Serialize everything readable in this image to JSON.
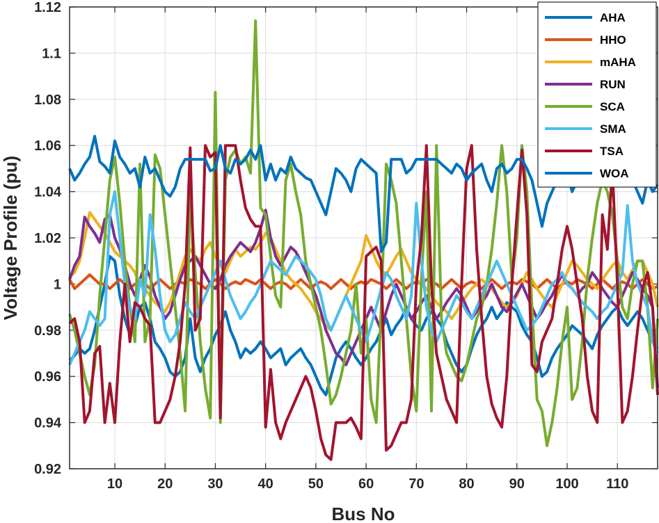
{
  "chart_data": {
    "type": "line",
    "title": "",
    "xlabel": "Bus No",
    "ylabel": "Voltage Profile (pu)",
    "xlim": [
      1,
      118
    ],
    "ylim": [
      0.92,
      1.12
    ],
    "xticks": [
      "10",
      "20",
      "30",
      "40",
      "50",
      "60",
      "70",
      "80",
      "90",
      "100",
      "110"
    ],
    "xtick_values": [
      10,
      20,
      30,
      40,
      50,
      60,
      70,
      80,
      90,
      100,
      110
    ],
    "yticks": [
      "0.92",
      "0.94",
      "0.96",
      "0.98",
      "1",
      "1.02",
      "1.04",
      "1.06",
      "1.08",
      "1.1",
      "1.12"
    ],
    "ytick_values": [
      0.92,
      0.94,
      0.96,
      0.98,
      1.0,
      1.02,
      1.04,
      1.06,
      1.08,
      1.1,
      1.12
    ],
    "grid": true,
    "legend_position": "top-right",
    "series": [
      {
        "name": "AHA",
        "color": "#0072BD",
        "values": [
          0.967,
          0.969,
          0.972,
          0.97,
          0.972,
          0.98,
          0.99,
          1.0,
          1.012,
          1.01,
          0.995,
          0.985,
          0.978,
          0.982,
          0.99,
          0.992,
          0.985,
          0.975,
          0.972,
          0.968,
          0.962,
          0.96,
          0.962,
          0.968,
          0.985,
          0.968,
          0.962,
          0.968,
          0.972,
          0.978,
          0.982,
          0.988,
          0.98,
          0.975,
          0.968,
          0.972,
          0.97,
          0.972,
          0.975,
          0.972,
          0.968,
          0.97,
          0.972,
          0.965,
          0.968,
          0.97,
          0.972,
          0.968,
          0.965,
          0.96,
          0.955,
          0.952,
          0.96,
          0.968,
          0.972,
          0.975,
          0.972,
          0.968,
          0.965,
          0.968,
          0.972,
          0.975,
          0.98,
          0.985,
          0.978,
          0.982,
          0.985,
          0.99,
          0.985,
          0.982,
          0.98,
          0.985,
          0.988,
          0.985,
          0.982,
          0.975,
          0.97,
          0.965,
          0.962,
          0.965,
          0.972,
          0.978,
          0.982,
          0.985,
          0.99,
          0.985,
          0.988,
          0.992,
          0.99,
          0.988,
          0.982,
          0.978,
          0.975,
          0.968,
          0.96,
          0.962,
          0.968,
          0.972,
          0.975,
          0.978,
          0.982,
          0.98,
          0.978,
          0.975,
          0.972,
          0.978,
          0.982,
          0.985,
          0.988,
          0.99,
          0.985,
          0.982,
          0.985,
          0.988,
          0.985,
          0.98,
          0.975,
          0.972
        ]
      },
      {
        "name": "HHO",
        "color": "#D95319",
        "values": [
          1.002,
          0.998,
          1.0,
          1.002,
          1.004,
          1.002,
          1.0,
          1.0,
          0.998,
          1.0,
          1.002,
          1.0,
          0.998,
          1.0,
          1.001,
          1.0,
          0.998,
          1.0,
          1.002,
          1.0,
          0.998,
          1.0,
          1.001,
          1.0,
          1.002,
          1.001,
          1.0,
          0.998,
          1.0,
          1.002,
          1.0,
          0.998,
          1.0,
          1.001,
          1.0,
          1.002,
          1.001,
          1.0,
          1.002,
          1.0,
          0.998,
          1.0,
          1.001,
          1.0,
          0.998,
          1.0,
          1.002,
          1.0,
          0.998,
          1.0,
          1.001,
          1.0,
          0.998,
          1.0,
          1.002,
          1.0,
          0.998,
          1.0,
          1.001,
          1.0,
          1.002,
          1.001,
          1.0,
          0.998,
          1.0,
          1.002,
          1.0,
          0.998,
          1.0,
          1.001,
          1.0,
          1.002,
          1.001,
          1.0,
          0.998,
          1.0,
          1.002,
          1.0,
          0.998,
          1.0,
          1.001,
          1.0,
          0.998,
          1.0,
          1.002,
          1.0,
          0.998,
          1.0,
          1.001,
          1.0,
          1.002,
          1.001,
          1.0,
          0.998,
          1.0,
          1.002,
          1.0,
          0.998,
          1.0,
          1.001,
          1.0,
          1.002,
          1.001,
          1.0,
          0.998,
          1.0,
          1.002,
          1.0,
          0.998,
          1.0,
          1.001,
          1.0,
          0.998,
          1.0,
          1.002,
          1.0,
          0.998,
          0.999
        ]
      },
      {
        "name": "mAHA",
        "color": "#EDB120",
        "values": [
          1.003,
          1.005,
          1.01,
          1.02,
          1.031,
          1.028,
          1.025,
          1.022,
          1.018,
          1.014,
          1.012,
          1.01,
          1.008,
          1.005,
          1.0,
          0.998,
          0.995,
          0.992,
          0.99,
          0.988,
          0.992,
          0.998,
          1.005,
          1.012,
          1.015,
          1.012,
          1.01,
          1.015,
          1.018,
          1.012,
          1.008,
          1.005,
          1.01,
          1.015,
          1.012,
          1.014,
          1.016,
          1.015,
          1.018,
          1.022,
          1.02,
          1.015,
          1.01,
          1.005,
          1.002,
          1.0,
          0.998,
          0.995,
          0.992,
          0.988,
          0.985,
          0.982,
          0.98,
          0.985,
          0.99,
          0.995,
          1.0,
          1.005,
          1.01,
          1.021,
          1.016,
          1.01,
          1.006,
          1.004,
          1.008,
          1.012,
          1.015,
          1.01,
          1.005,
          1.002,
          1.0,
          0.998,
          0.995,
          0.992,
          0.99,
          0.988,
          0.985,
          0.988,
          0.992,
          0.995,
          0.998,
          1.0,
          1.002,
          1.0,
          0.998,
          0.995,
          0.992,
          0.99,
          0.992,
          0.995,
          1.0,
          1.005,
          1.002,
          0.998,
          0.995,
          0.992,
          0.99,
          0.995,
          1.0,
          1.005,
          1.01,
          1.008,
          1.005,
          1.002,
          1.0,
          0.998,
          1.002,
          1.005,
          1.008,
          1.01,
          1.005,
          1.002,
          1.006,
          1.01,
          1.01,
          1.005,
          1.0,
          0.99
        ]
      },
      {
        "name": "RUN",
        "color": "#7E2F8E",
        "values": [
          1.002,
          1.008,
          1.012,
          1.029,
          1.025,
          1.022,
          1.018,
          1.028,
          1.03,
          1.02,
          1.015,
          1.008,
          1.0,
          0.995,
          1.002,
          1.008,
          1.003,
          0.995,
          0.99,
          0.985,
          0.988,
          0.995,
          1.002,
          1.008,
          1.01,
          1.012,
          1.008,
          1.004,
          1.0,
          0.998,
          1.002,
          1.008,
          1.012,
          1.015,
          1.018,
          1.016,
          1.014,
          1.018,
          1.024,
          1.032,
          1.02,
          1.012,
          1.008,
          1.012,
          1.016,
          1.014,
          1.01,
          1.005,
          1.0,
          0.995,
          0.988,
          0.98,
          0.975,
          0.97,
          0.968,
          0.965,
          0.97,
          0.975,
          0.98,
          0.985,
          0.99,
          0.985,
          0.98,
          0.988,
          0.995,
          1.0,
          0.995,
          0.99,
          0.985,
          0.988,
          0.992,
          0.995,
          0.99,
          0.985,
          0.988,
          0.992,
          0.995,
          0.998,
          0.995,
          0.99,
          0.985,
          0.988,
          0.992,
          0.995,
          1.0,
          0.995,
          0.99,
          0.988,
          0.992,
          0.996,
          1.0,
          0.995,
          0.99,
          0.985,
          0.988,
          0.992,
          0.995,
          1.0,
          1.004,
          1.0,
          0.998,
          0.995,
          0.998,
          1.0,
          1.005,
          1.002,
          0.998,
          0.995,
          0.992,
          0.99,
          0.995,
          1.0,
          1.005,
          1.002,
          0.998,
          0.995,
          0.99,
          0.955
        ]
      },
      {
        "name": "SCA",
        "color": "#77AC30",
        "values": [
          0.987,
          0.98,
          0.97,
          0.96,
          0.952,
          0.965,
          0.995,
          1.02,
          1.045,
          1.055,
          1.035,
          1.01,
          0.99,
          0.975,
          1.052,
          0.975,
          0.985,
          1.056,
          1.05,
          1.03,
          1.01,
          0.99,
          0.97,
          0.945,
          1.04,
          1.005,
          0.975,
          0.955,
          0.942,
          1.083,
          0.94,
          1.045,
          1.055,
          1.058,
          1.052,
          1.055,
          1.048,
          1.114,
          1.033,
          1.03,
          1.012,
          0.995,
          0.99,
          1.045,
          1.052,
          1.04,
          1.03,
          1.01,
          1.0,
          0.99,
          0.98,
          0.965,
          0.948,
          0.952,
          0.96,
          0.97,
          0.98,
          1.0,
          0.97,
          0.985,
          0.95,
          0.94,
          0.99,
          1.052,
          1.045,
          1.035,
          1.01,
          0.985,
          0.96,
          0.945,
          1.002,
          1.04,
          0.945,
          1.06,
          0.985,
          0.97,
          0.965,
          0.96,
          0.958,
          0.965,
          0.975,
          0.985,
          0.99,
          1.0,
          1.015,
          1.035,
          1.06,
          1.04,
          1.002,
          1.02,
          1.06,
          1.04,
          0.99,
          0.95,
          0.945,
          0.93,
          0.94,
          0.955,
          0.975,
          0.99,
          0.95,
          0.955,
          0.975,
          1.002,
          1.02,
          1.035,
          1.045,
          1.04,
          1.03,
          1.01,
          0.99,
          0.985,
          1.0,
          1.01,
          1.01,
          0.99,
          0.955,
          0.985
        ]
      },
      {
        "name": "SMA",
        "color": "#4DBEEE",
        "values": [
          0.965,
          0.97,
          0.975,
          0.98,
          0.988,
          0.985,
          0.982,
          0.985,
          1.03,
          1.04,
          1.02,
          1.0,
          0.99,
          0.985,
          1.002,
          0.995,
          1.03,
          1.015,
          0.995,
          0.98,
          0.975,
          0.978,
          0.985,
          0.992,
          0.988,
          0.985,
          0.99,
          0.995,
          1.0,
          1.005,
          1.01,
          1.002,
          0.995,
          0.99,
          0.985,
          0.988,
          0.992,
          0.995,
          1.0,
          1.005,
          1.01,
          1.008,
          1.006,
          1.004,
          1.008,
          1.012,
          1.01,
          1.008,
          1.005,
          1.002,
          0.995,
          0.985,
          0.98,
          0.985,
          0.99,
          0.995,
          0.99,
          0.985,
          0.98,
          0.975,
          0.982,
          0.99,
          0.998,
          1.005,
          1.002,
          0.995,
          0.99,
          0.985,
          0.995,
          1.035,
          1.01,
          0.99,
          0.98,
          0.975,
          0.98,
          0.985,
          0.99,
          0.995,
          0.992,
          0.988,
          0.985,
          0.99,
          0.995,
          1.0,
          1.005,
          1.01,
          1.005,
          1.0,
          0.995,
          0.99,
          0.985,
          0.98,
          0.982,
          0.985,
          0.99,
          0.995,
          1.0,
          1.002,
          1.005,
          1.0,
          0.998,
          0.995,
          0.992,
          0.99,
          0.988,
          0.985,
          0.988,
          0.99,
          0.995,
          1.0,
          1.005,
          1.034,
          1.01,
          1.0,
          0.995,
          0.99,
          0.975,
          0.97
        ]
      },
      {
        "name": "TSA",
        "color": "#A2142F",
        "values": [
          0.983,
          0.985,
          0.975,
          0.94,
          0.945,
          0.97,
          0.973,
          0.94,
          0.957,
          0.94,
          0.975,
          1.0,
          0.975,
          0.992,
          0.99,
          0.985,
          0.982,
          0.94,
          0.94,
          0.945,
          0.95,
          0.96,
          0.975,
          1.0,
          1.059,
          0.98,
          0.985,
          1.06,
          1.055,
          1.057,
          0.942,
          1.06,
          1.06,
          1.06,
          1.045,
          1.033,
          1.028,
          1.025,
          1.025,
          0.938,
          0.963,
          0.94,
          0.933,
          0.94,
          0.945,
          0.95,
          0.955,
          0.96,
          0.955,
          0.945,
          0.933,
          0.926,
          0.924,
          0.94,
          0.94,
          0.94,
          0.942,
          0.938,
          0.933,
          1.012,
          1.014,
          1.016,
          1.01,
          0.928,
          0.93,
          0.935,
          0.94,
          0.94,
          0.95,
          1.0,
          1.02,
          1.06,
          1.0,
          0.97,
          0.96,
          0.95,
          0.945,
          0.94,
          1.0,
          1.05,
          1.06,
          1.015,
          0.985,
          0.96,
          0.948,
          0.942,
          0.938,
          0.96,
          1.0,
          1.03,
          1.058,
          1.03,
          0.965,
          0.962,
          0.975,
          0.98,
          0.985,
          1.0,
          1.015,
          1.025,
          1.015,
          1.0,
          0.985,
          0.96,
          0.945,
          0.94,
          1.03,
          1.015,
          1.05,
          1.0,
          0.94,
          0.945,
          0.96,
          0.98,
          0.998,
          1.005,
          0.99,
          0.952
        ]
      },
      {
        "name": "WOA",
        "color": "#0072BD",
        "values": [
          1.05,
          1.045,
          1.048,
          1.052,
          1.055,
          1.064,
          1.053,
          1.051,
          1.048,
          1.062,
          1.055,
          1.052,
          1.048,
          1.05,
          1.042,
          1.055,
          1.048,
          1.05,
          1.045,
          1.04,
          1.038,
          1.042,
          1.05,
          1.054,
          1.054,
          1.054,
          1.054,
          1.054,
          1.049,
          1.05,
          1.06,
          1.05,
          1.048,
          1.054,
          1.052,
          1.054,
          1.058,
          1.054,
          1.06,
          1.045,
          1.052,
          1.045,
          1.05,
          1.048,
          1.055,
          1.05,
          1.048,
          1.046,
          1.045,
          1.04,
          1.035,
          1.03,
          1.04,
          1.05,
          1.048,
          1.045,
          1.04,
          1.05,
          1.054,
          1.052,
          1.05,
          1.048,
          1.014,
          1.018,
          1.054,
          1.054,
          1.054,
          1.048,
          1.05,
          1.054,
          1.054,
          1.054,
          1.054,
          1.054,
          1.052,
          1.05,
          1.048,
          1.052,
          1.05,
          1.045,
          1.048,
          1.05,
          1.052,
          1.045,
          1.04,
          1.05,
          1.052,
          1.048,
          1.05,
          1.054,
          1.054,
          1.05,
          1.045,
          1.035,
          1.025,
          1.035,
          1.04,
          1.045,
          1.05,
          1.048,
          1.04,
          1.045,
          1.05,
          1.052,
          1.054,
          1.05,
          1.045,
          1.052,
          1.05,
          1.054,
          1.048,
          1.05,
          1.045,
          1.04,
          1.035,
          1.045,
          1.04,
          1.043
        ]
      }
    ]
  }
}
